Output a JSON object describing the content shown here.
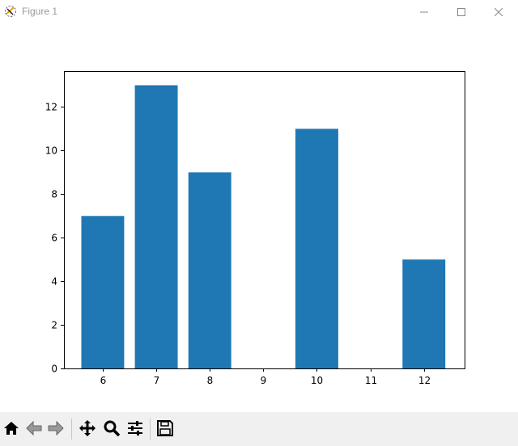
{
  "window": {
    "title": "Figure 1",
    "icon": "matplotlib-icon",
    "controls": [
      "minimize-icon",
      "maximize-icon",
      "close-icon"
    ]
  },
  "toolbar": {
    "buttons": [
      "home-icon",
      "back-icon",
      "forward-icon",
      "pan-icon",
      "zoom-icon",
      "configure-subplots-icon",
      "save-icon"
    ]
  },
  "chart_data": {
    "type": "bar",
    "categories": [
      6,
      7,
      8,
      10,
      12
    ],
    "values": [
      7,
      13,
      9,
      11,
      5
    ],
    "bar_width": 0.8,
    "color": "#1f77b4",
    "xlim": [
      5.275,
      12.76
    ],
    "ylim": [
      0,
      13.65
    ],
    "xticks": [
      6,
      7,
      8,
      9,
      10,
      11,
      12
    ],
    "yticks": [
      0,
      2,
      4,
      6,
      8,
      10,
      12
    ],
    "title": "",
    "xlabel": "",
    "ylabel": "",
    "grid": false
  }
}
